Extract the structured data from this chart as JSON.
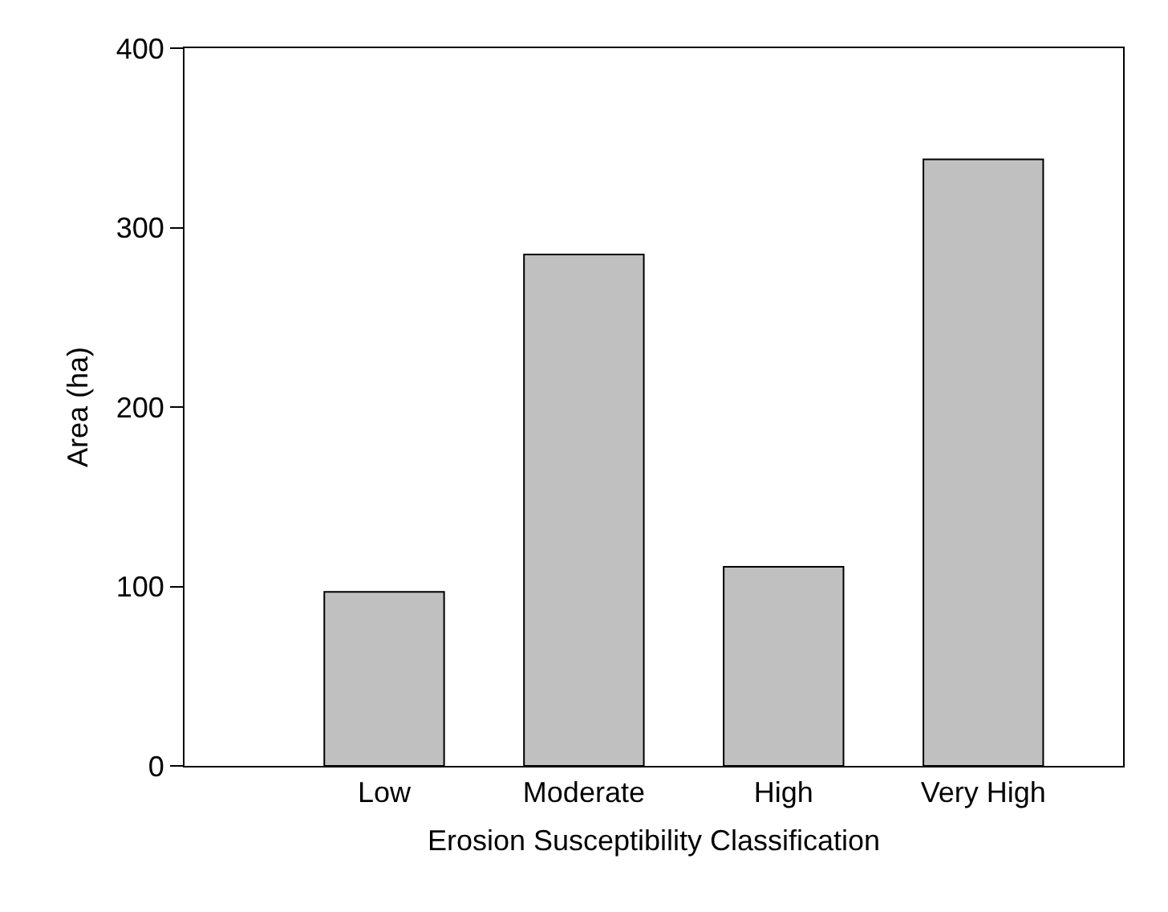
{
  "chart_data": {
    "type": "bar",
    "xlabel": "Erosion Susceptibility Classification",
    "ylabel": "Area (ha)",
    "categories": [
      null,
      "Low",
      "Moderate",
      "High",
      "Very High"
    ],
    "values": [
      null,
      97,
      285,
      111,
      338
    ],
    "color": "#c0c0c0",
    "ylim": [
      0,
      400
    ],
    "yticks": [
      0,
      100,
      200,
      300,
      400
    ],
    "grid": false
  }
}
